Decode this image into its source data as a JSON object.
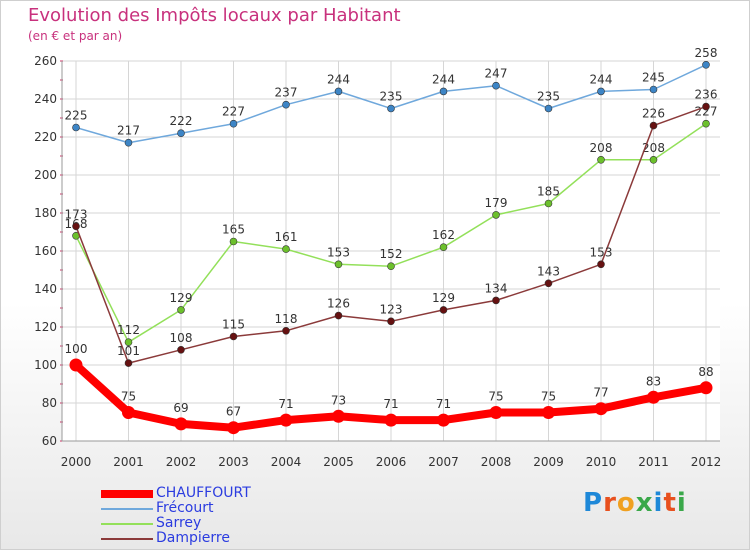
{
  "header": {
    "title": "Evolution des Impôts locaux par Habitant",
    "subtitle": "(en € et par an)"
  },
  "logo": {
    "text": "Proxiti",
    "letters": [
      "P",
      "r",
      "o",
      "x",
      "i",
      "t",
      "i"
    ],
    "letter_colors": [
      "#1e88d8",
      "#e8501e",
      "#f0a020",
      "#3aa84a",
      "#1e88d8",
      "#e8501e",
      "#3aa84a"
    ]
  },
  "chart_data": {
    "type": "line",
    "title": "Evolution des Impôts locaux par Habitant",
    "subtitle": "(en € et par an)",
    "xlabel": "",
    "ylabel": "",
    "categories": [
      "2000",
      "2001",
      "2002",
      "2003",
      "2004",
      "2005",
      "2006",
      "2007",
      "2008",
      "2009",
      "2010",
      "2011",
      "2012"
    ],
    "ylim": [
      60,
      260
    ],
    "yticks": [
      60,
      80,
      100,
      120,
      140,
      160,
      180,
      200,
      220,
      240,
      260
    ],
    "grid": true,
    "legend_position": "bottom-left",
    "series": [
      {
        "name": "CHAUFFOURT",
        "color": "#ff0000",
        "marker": "#ff0000",
        "emphasis": true,
        "values": [
          100,
          75,
          69,
          67,
          71,
          73,
          71,
          71,
          75,
          75,
          77,
          83,
          88
        ]
      },
      {
        "name": "Frécourt",
        "color": "#6fa8dc",
        "marker": "#3d85c6",
        "emphasis": false,
        "values": [
          225,
          217,
          222,
          227,
          237,
          244,
          235,
          244,
          247,
          235,
          244,
          245,
          258
        ]
      },
      {
        "name": "Sarrey",
        "color": "#93e05a",
        "marker": "#6cc02c",
        "emphasis": false,
        "values": [
          168,
          112,
          129,
          165,
          161,
          153,
          152,
          162,
          179,
          185,
          208,
          208,
          227
        ]
      },
      {
        "name": "Dampierre",
        "color": "#8b3a3a",
        "marker": "#661111",
        "emphasis": false,
        "values": [
          173,
          101,
          108,
          115,
          118,
          126,
          123,
          129,
          134,
          143,
          153,
          226,
          236
        ]
      }
    ]
  }
}
